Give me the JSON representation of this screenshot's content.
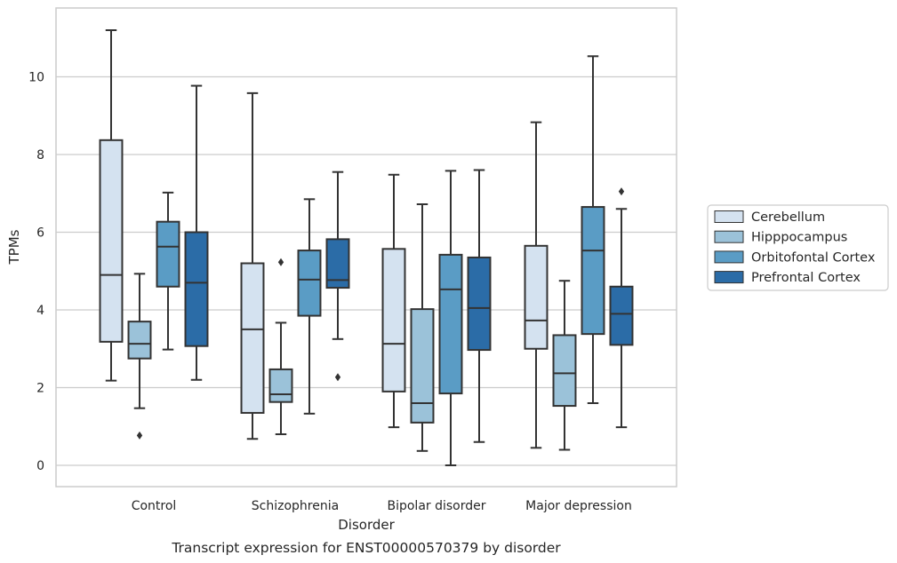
{
  "chart_data": {
    "type": "box",
    "xlabel": "Disorder",
    "ylabel": "TPMs",
    "caption": "Transcript expression for ENST00000570379 by disorder",
    "ylim": [
      -0.5,
      11.7
    ],
    "yticks": [
      0,
      2,
      4,
      6,
      8,
      10
    ],
    "grid": "horizontal",
    "legend_position": "right",
    "categories": [
      "Control",
      "Schizophrenia",
      "Bipolar disorder",
      "Major depression"
    ],
    "series": [
      {
        "name": "Cerebellum",
        "color": "#d4e2f0",
        "boxes": [
          {
            "whislo": 2.18,
            "q1": 3.18,
            "med": 4.9,
            "q3": 8.37,
            "whishi": 11.2,
            "fliers": []
          },
          {
            "whislo": 0.68,
            "q1": 1.35,
            "med": 3.5,
            "q3": 5.2,
            "whishi": 9.58,
            "fliers": []
          },
          {
            "whislo": 0.98,
            "q1": 1.9,
            "med": 3.13,
            "q3": 5.57,
            "whishi": 7.48,
            "fliers": []
          },
          {
            "whislo": 0.45,
            "q1": 3.0,
            "med": 3.73,
            "q3": 5.65,
            "whishi": 8.83,
            "fliers": []
          }
        ]
      },
      {
        "name": "Hipppocampus",
        "color": "#9bc2d9",
        "boxes": [
          {
            "whislo": 1.47,
            "q1": 2.75,
            "med": 3.13,
            "q3": 3.7,
            "whishi": 4.93,
            "fliers": [
              0.77
            ]
          },
          {
            "whislo": 0.8,
            "q1": 1.63,
            "med": 1.83,
            "q3": 2.47,
            "whishi": 3.67,
            "fliers": [
              5.23
            ]
          },
          {
            "whislo": 0.37,
            "q1": 1.1,
            "med": 1.6,
            "q3": 4.02,
            "whishi": 6.72,
            "fliers": []
          },
          {
            "whislo": 0.4,
            "q1": 1.53,
            "med": 2.37,
            "q3": 3.35,
            "whishi": 4.75,
            "fliers": []
          }
        ]
      },
      {
        "name": "Orbitofontal Cortex",
        "color": "#5a9cc5",
        "boxes": [
          {
            "whislo": 2.98,
            "q1": 4.6,
            "med": 5.63,
            "q3": 6.27,
            "whishi": 7.02,
            "fliers": []
          },
          {
            "whislo": 1.33,
            "q1": 3.85,
            "med": 4.78,
            "q3": 5.53,
            "whishi": 6.85,
            "fliers": []
          },
          {
            "whislo": 0.0,
            "q1": 1.85,
            "med": 4.53,
            "q3": 5.42,
            "whishi": 7.58,
            "fliers": []
          },
          {
            "whislo": 1.6,
            "q1": 3.38,
            "med": 5.53,
            "q3": 6.65,
            "whishi": 10.53,
            "fliers": []
          }
        ]
      },
      {
        "name": "Prefrontal Cortex",
        "color": "#2b6ca7",
        "boxes": [
          {
            "whislo": 2.2,
            "q1": 3.07,
            "med": 4.7,
            "q3": 6.0,
            "whishi": 9.77,
            "fliers": []
          },
          {
            "whislo": 3.25,
            "q1": 4.57,
            "med": 4.77,
            "q3": 5.82,
            "whishi": 7.55,
            "fliers": [
              2.27
            ]
          },
          {
            "whislo": 0.6,
            "q1": 2.97,
            "med": 4.05,
            "q3": 5.35,
            "whishi": 7.6,
            "fliers": []
          },
          {
            "whislo": 0.98,
            "q1": 3.1,
            "med": 3.9,
            "q3": 4.6,
            "whishi": 6.6,
            "fliers": [
              7.05
            ]
          }
        ]
      }
    ]
  }
}
